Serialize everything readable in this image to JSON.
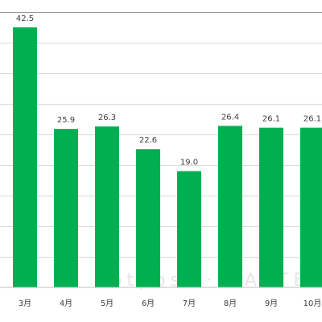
{
  "chart_data": {
    "type": "bar",
    "categories": [
      "3月",
      "4月",
      "5月",
      "6月",
      "7月",
      "8月",
      "9月",
      "10月"
    ],
    "values": [
      42.5,
      25.9,
      26.3,
      22.6,
      19.0,
      26.4,
      26.1,
      26.1
    ],
    "value_labels": [
      "42.5",
      "25.9",
      "26.3",
      "22.6",
      "19.0",
      "26.4",
      "26.1",
      "26.1"
    ],
    "ylim": [
      0,
      45
    ],
    "grid_step": 5,
    "grid": true,
    "bar_color": "#00b050",
    "title": "",
    "xlabel": "",
    "ylabel": ""
  },
  "watermark": "hotpost · CASTEL"
}
